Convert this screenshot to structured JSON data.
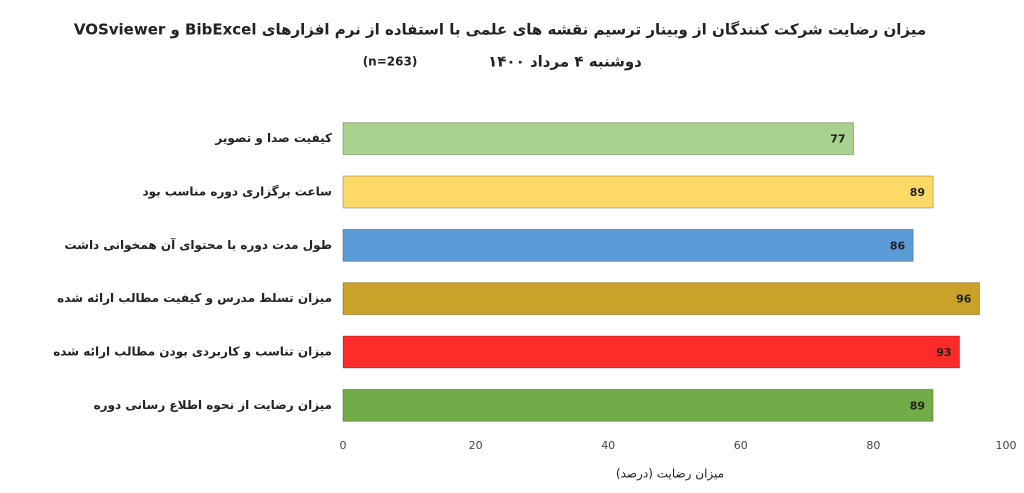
{
  "chart_data": {
    "type": "bar",
    "orientation": "horizontal",
    "title": "میزان رضایت شرکت کنندگان از وبینار ترسیم نقشه های علمی با استفاده از نرم افزارهای  BibExcel و VOSviewer",
    "subtitle": "دوشنبه ۴ مرداد ۱۴۰۰",
    "annotation": "(n=263)",
    "x_label": "میزان رضایت (درصد)",
    "categories": [
      "کیفیت صدا و تصویر",
      "ساعت برگزاری دوره مناسب بود",
      "طول مدت دوره با محتوای آن همخوانی داشت",
      "میزان تسلط مدرس و کیفیت مطالب ارائه شده",
      "میزان تناسب و کاربردی بودن مطالب ارائه شده",
      "میزان رضایت از نحوه اطلاع رسانی دوره"
    ],
    "values": [
      77,
      89,
      86,
      96,
      93,
      89
    ],
    "colors": [
      "#a9d18e",
      "#ffd966",
      "#5b9bd5",
      "#c9a227",
      "#ff2a2a",
      "#70ad47"
    ],
    "xlim": [
      0,
      100
    ],
    "xticks": [
      0,
      20,
      40,
      60,
      80,
      100
    ]
  }
}
